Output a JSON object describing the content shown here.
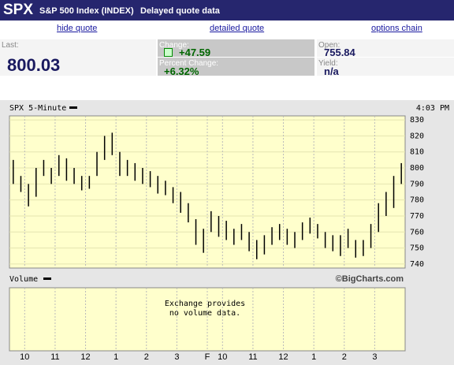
{
  "header": {
    "symbol": "SPX",
    "name": "S&P 500 Index (INDEX)",
    "note": "Delayed quote data"
  },
  "links": [
    "hide quote",
    "detailed quote",
    "options chain"
  ],
  "quote": {
    "last_label": "Last:",
    "last": "800.03",
    "change_label": "Change:",
    "change": "+47.59",
    "percent_label": "Percent Change:",
    "percent": "+6.32%",
    "open_label": "Open:",
    "open": "755.84",
    "yield_label": "Yield:",
    "yield": "n/a"
  },
  "chart_data": {
    "type": "ohlc",
    "title": "SPX 5-Minute",
    "time": "4:03 PM",
    "color": "#000000",
    "high": [
      805,
      795,
      790,
      800,
      805,
      800,
      808,
      806,
      800,
      795,
      795,
      810,
      820,
      822,
      810,
      805,
      803,
      800,
      798,
      795,
      792,
      788,
      785,
      778,
      768,
      762,
      773,
      770,
      767,
      762,
      765,
      760,
      755,
      758,
      763,
      765,
      762,
      760,
      766,
      769,
      765,
      760,
      758,
      758,
      762,
      755,
      755,
      765,
      778,
      785,
      795,
      803
    ],
    "low": [
      790,
      785,
      776,
      782,
      795,
      790,
      795,
      792,
      790,
      786,
      787,
      795,
      805,
      808,
      795,
      795,
      792,
      790,
      788,
      784,
      783,
      778,
      772,
      766,
      752,
      747,
      760,
      757,
      755,
      752,
      755,
      748,
      743,
      746,
      752,
      755,
      752,
      750,
      755,
      759,
      756,
      750,
      748,
      745,
      750,
      744,
      745,
      750,
      760,
      770,
      775,
      790
    ],
    "xlim": [
      0,
      52
    ],
    "xticks": [
      {
        "value": 2,
        "label": "10"
      },
      {
        "value": 6,
        "label": "11"
      },
      {
        "value": 10,
        "label": "12"
      },
      {
        "value": 14,
        "label": "1"
      },
      {
        "value": 18,
        "label": "2"
      },
      {
        "value": 22,
        "label": "3"
      },
      {
        "value": 26,
        "label": "F"
      },
      {
        "value": 28,
        "label": "10"
      },
      {
        "value": 32,
        "label": "11"
      },
      {
        "value": 36,
        "label": "12"
      },
      {
        "value": 40,
        "label": "1"
      },
      {
        "value": 44,
        "label": "2"
      },
      {
        "value": 48,
        "label": "3"
      }
    ],
    "ylim": [
      737.5,
      832.5
    ],
    "yticks": [
      740,
      750,
      760,
      770,
      780,
      790,
      800,
      810,
      820,
      830
    ],
    "grid": true
  },
  "volume": {
    "label": "Volume",
    "message": [
      "Exchange provides",
      "no volume data."
    ],
    "credit": "©BigCharts.com"
  }
}
